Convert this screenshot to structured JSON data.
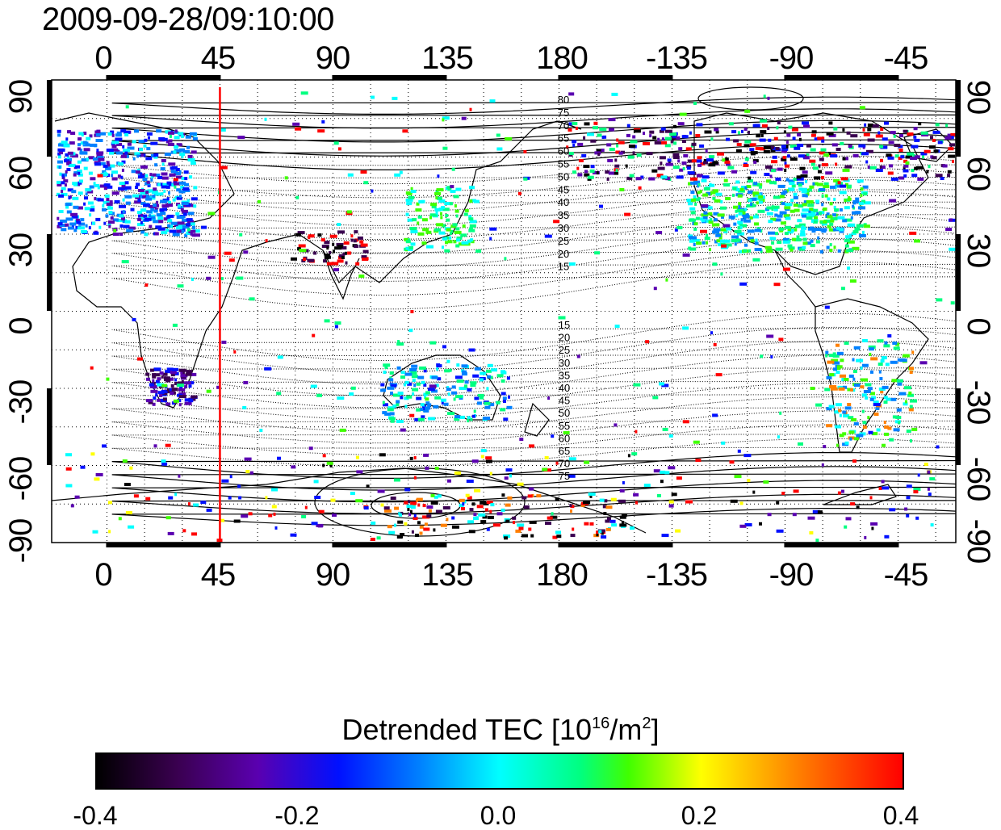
{
  "timestamp": "2009-09-28/09:10:00",
  "x_ticks": [
    "0",
    "45",
    "90",
    "135",
    "180",
    "-135",
    "-90",
    "-45"
  ],
  "y_ticks": [
    "90",
    "60",
    "30",
    "0",
    "-30",
    "-60",
    "-90"
  ],
  "contour_labels_north": [
    "80",
    "75",
    "70",
    "65",
    "60",
    "55",
    "50",
    "45",
    "40",
    "35",
    "30",
    "25",
    "20",
    "15"
  ],
  "contour_labels_south": [
    "15",
    "20",
    "25",
    "30",
    "35",
    "40",
    "45",
    "50",
    "55",
    "60",
    "65",
    "70",
    "75"
  ],
  "marker_longitude": 45,
  "colorbar": {
    "title_prefix": "Detrended TEC  [10",
    "title_sup1": "16",
    "title_mid": "/m",
    "title_sup2": "2",
    "title_suffix": "]",
    "ticks": [
      "-0.4",
      "-0.2",
      "0.0",
      "0.2",
      "0.4"
    ],
    "range": [
      -0.4,
      0.4
    ],
    "colors": [
      "#000000",
      "#3a0050",
      "#5a00b0",
      "#0010ff",
      "#0080ff",
      "#00ffff",
      "#00ff80",
      "#40ff00",
      "#ffff00",
      "#ff8000",
      "#ff0000"
    ]
  },
  "map": {
    "projection": "equirectangular",
    "lon_range": [
      -22,
      338
    ],
    "lat_range": [
      -90,
      90
    ],
    "grid": true,
    "marker_color": "#ff0000"
  }
}
